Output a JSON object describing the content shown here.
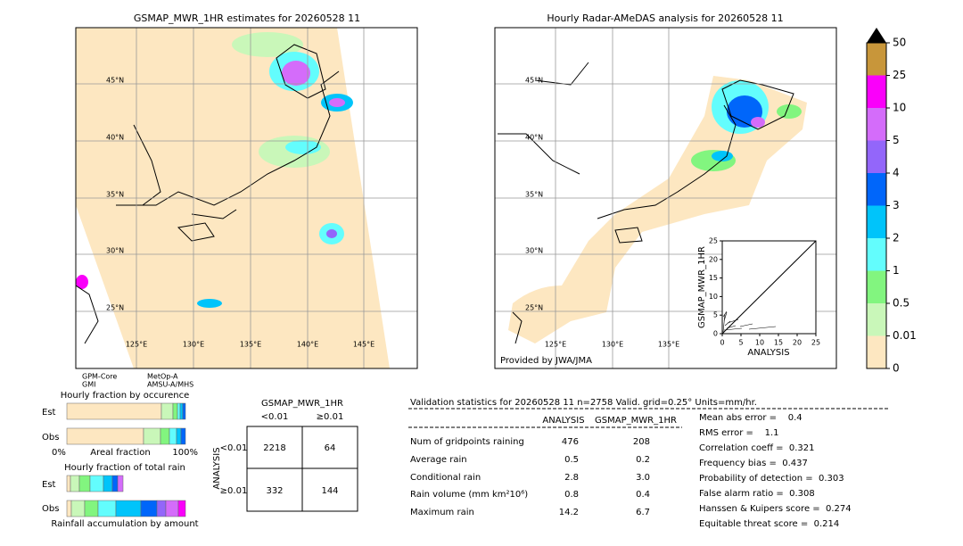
{
  "left_map": {
    "title": "GSMAP_MWR_1HR estimates for 20260528 11",
    "lat_labels": [
      "45°N",
      "40°N",
      "35°N",
      "30°N",
      "25°N"
    ],
    "lon_labels": [
      "125°E",
      "130°E",
      "135°E",
      "140°E",
      "145°E"
    ]
  },
  "right_map": {
    "title": "Hourly Radar-AMeDAS analysis for 20260528 11",
    "lat_labels": [
      "45°N",
      "40°N",
      "35°N",
      "30°N",
      "25°N"
    ],
    "lon_labels": [
      "125°E",
      "130°E",
      "135°E"
    ],
    "credit": "Provided by JWA/JMA"
  },
  "scatter": {
    "xlabel": "ANALYSIS",
    "ylabel": "GSMAP_MWR_1HR",
    "xticks": [
      "0",
      "5",
      "10",
      "15",
      "20",
      "25"
    ],
    "yticks": [
      "0",
      "5",
      "10",
      "15",
      "20",
      "25"
    ]
  },
  "colorbar": {
    "labels": [
      "0",
      "0.01",
      "0.5",
      "1",
      "2",
      "3",
      "4",
      "5",
      "10",
      "25",
      "50"
    ],
    "colors": [
      "#fde7c1",
      "#c9f7b9",
      "#82f57f",
      "#63fdfd",
      "#00c4fa",
      "#0066fa",
      "#9366fa",
      "#d46cfa",
      "#fa00fa",
      "#c8963a"
    ]
  },
  "sensors": [
    {
      "name": "GPM-Core",
      "instrument": "GMI"
    },
    {
      "name": "MetOp-A",
      "instrument": "AMSU-A/MHS"
    }
  ],
  "fraction_occurrence": {
    "title": "Hourly fraction by occurence",
    "rows": [
      "Est",
      "Obs"
    ],
    "axis": [
      "0%",
      "Areal fraction",
      "100%"
    ]
  },
  "fraction_rain": {
    "title": "Hourly fraction of total rain",
    "rows": [
      "Est",
      "Obs"
    ],
    "caption": "Rainfall accumulation by amount"
  },
  "contingency": {
    "title": "GSMAP_MWR_1HR",
    "columns": [
      "<0.01",
      "≥0.01"
    ],
    "row_title": "ANALYSIS",
    "rows": [
      "<0.01",
      "≥0.01"
    ],
    "cells": [
      [
        2218,
        64
      ],
      [
        332,
        144
      ]
    ]
  },
  "validation": {
    "header": "Validation statistics for 20260528 11  n=2758 Valid. grid=0.25° Units=mm/hr.",
    "columns": [
      "ANALYSIS",
      "GSMAP_MWR_1HR"
    ],
    "rows": [
      {
        "label": "Num of gridpoints raining",
        "values": [
          "476",
          "208"
        ]
      },
      {
        "label": "Average rain",
        "values": [
          "0.5",
          "0.2"
        ]
      },
      {
        "label": "Conditional rain",
        "values": [
          "2.8",
          "3.0"
        ]
      },
      {
        "label": "Rain volume (mm km²10⁶)",
        "values": [
          "0.8",
          "0.4"
        ]
      },
      {
        "label": "Maximum rain",
        "values": [
          "14.2",
          "6.7"
        ]
      }
    ],
    "scores": [
      "Mean abs error =    0.4",
      "RMS error =    1.1",
      "Correlation coeff =  0.321",
      "Frequency bias =  0.437",
      "Probability of detection =  0.303",
      "False alarm ratio =  0.308",
      "Hanssen & Kuipers score =  0.274",
      "Equitable threat score =  0.214"
    ]
  }
}
